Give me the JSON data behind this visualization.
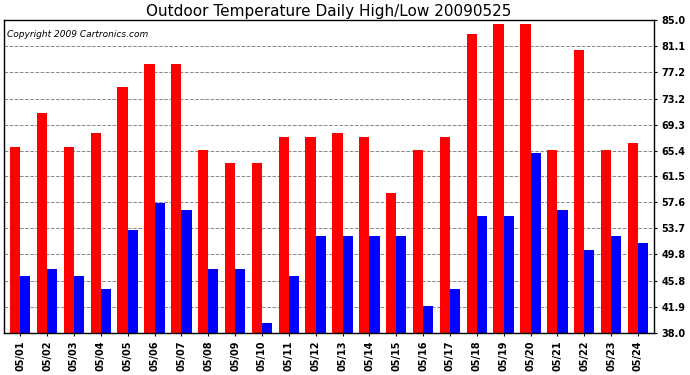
{
  "title": "Outdoor Temperature Daily High/Low 20090525",
  "copyright": "Copyright 2009 Cartronics.com",
  "dates": [
    "05/01",
    "05/02",
    "05/03",
    "05/04",
    "05/05",
    "05/06",
    "05/07",
    "05/08",
    "05/09",
    "05/10",
    "05/11",
    "05/12",
    "05/13",
    "05/14",
    "05/15",
    "05/16",
    "05/17",
    "05/18",
    "05/19",
    "05/20",
    "05/21",
    "05/22",
    "05/23",
    "05/24"
  ],
  "highs": [
    66.0,
    71.0,
    66.0,
    68.0,
    75.0,
    78.5,
    78.5,
    65.5,
    63.5,
    63.5,
    67.5,
    67.5,
    68.0,
    67.5,
    59.0,
    65.5,
    67.5,
    83.0,
    84.5,
    84.5,
    65.5,
    80.5,
    65.5,
    66.5
  ],
  "lows": [
    46.5,
    47.5,
    46.5,
    44.5,
    53.5,
    57.5,
    56.5,
    47.5,
    47.5,
    39.5,
    46.5,
    52.5,
    52.5,
    52.5,
    52.5,
    42.0,
    44.5,
    55.5,
    55.5,
    65.0,
    56.5,
    50.5,
    52.5,
    51.5
  ],
  "ylim": [
    38.0,
    85.0
  ],
  "yticks": [
    38.0,
    41.9,
    45.8,
    49.8,
    53.7,
    57.6,
    61.5,
    65.4,
    69.3,
    73.2,
    77.2,
    81.1,
    85.0
  ],
  "bar_color_high": "#ff0000",
  "bar_color_low": "#0000ff",
  "background_color": "#ffffff",
  "grid_color": "#888888",
  "title_fontsize": 11,
  "tick_fontsize": 7,
  "copyright_fontsize": 6.5
}
